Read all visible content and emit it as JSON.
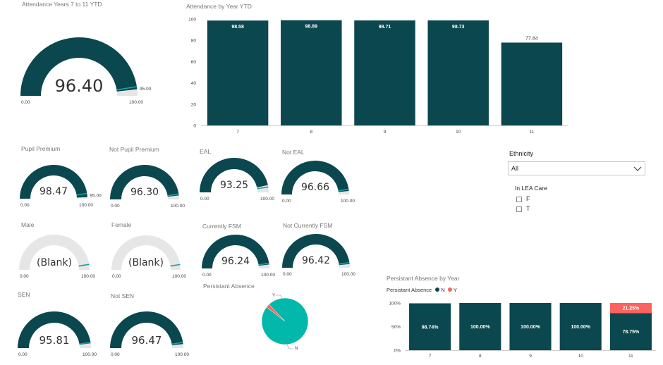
{
  "colors": {
    "primary": "#0b474f",
    "track": "#e6e6e6",
    "target": "#1aa3a3",
    "accent": "#fd625e",
    "pie_n": "#01b8aa"
  },
  "gauges": [
    {
      "title": "Attendance Years 7 to 11 YTD",
      "value": 96.4,
      "label": "96.40",
      "min_label": "0.00",
      "max_label": "100.00",
      "target_label": "95.00",
      "target": 95,
      "max": 100
    },
    {
      "title": "Pupil Premium",
      "value": 98.47,
      "label": "98.47",
      "min_label": "0.00",
      "max_label": "100.00",
      "target_label": "95.00",
      "target": 95,
      "max": 100
    },
    {
      "title": "Not Pupil Premium",
      "value": 96.3,
      "label": "96.30",
      "min_label": "0.00",
      "max_label": "100.00",
      "target_label": "",
      "target": 95,
      "max": 100
    },
    {
      "title": "EAL",
      "value": 93.25,
      "label": "93.25",
      "min_label": "0.00",
      "max_label": "100.00",
      "target_label": "",
      "target": 95,
      "max": 100
    },
    {
      "title": "Not EAL",
      "value": 96.66,
      "label": "96.66",
      "min_label": "0.00",
      "max_label": "100.00",
      "target_label": "",
      "target": 95,
      "max": 100
    },
    {
      "title": "Male",
      "value": null,
      "label": "(Blank)",
      "min_label": "0.00",
      "max_label": "100.00",
      "target_label": "",
      "target": 95,
      "max": 100
    },
    {
      "title": "Female",
      "value": null,
      "label": "(Blank)",
      "min_label": "0.00",
      "max_label": "100.00",
      "target_label": "",
      "target": 95,
      "max": 100
    },
    {
      "title": "Currently FSM",
      "value": 96.24,
      "label": "96.24",
      "min_label": "0.00",
      "max_label": "100.00",
      "target_label": "",
      "target": 95,
      "max": 100
    },
    {
      "title": "Not Currently FSM",
      "value": 96.42,
      "label": "96.42",
      "min_label": "0.00",
      "max_label": "100.00",
      "target_label": "",
      "target": 95,
      "max": 100
    },
    {
      "title": "SEN",
      "value": 95.81,
      "label": "95.81",
      "min_label": "0.00",
      "max_label": "100.00",
      "target_label": "",
      "target": 95,
      "max": 100
    },
    {
      "title": "Not SEN",
      "value": 96.47,
      "label": "96.47",
      "min_label": "0.00",
      "max_label": "100.00",
      "target_label": "",
      "target": 95,
      "max": 100
    }
  ],
  "chart_data": [
    {
      "type": "bar",
      "title": "Attendance by Year YTD",
      "categories": [
        "7",
        "8",
        "9",
        "10",
        "11"
      ],
      "values": [
        98.58,
        98.89,
        98.71,
        98.73,
        77.84
      ],
      "value_labels": [
        "98.58",
        "98.89",
        "98.71",
        "98.73",
        "77.84"
      ],
      "ylim": [
        0,
        100
      ],
      "yticks": [
        "0",
        "20",
        "40",
        "60",
        "80",
        "100"
      ],
      "grid": false
    },
    {
      "type": "pie",
      "title": "Persistant Absence",
      "slices": [
        {
          "name": "N",
          "value": 97.5
        },
        {
          "name": "Y",
          "value": 2.5
        }
      ]
    },
    {
      "type": "bar",
      "stacked": "100%",
      "title": "Persistant Absence by Year",
      "legend_title": "Persistant Absence",
      "legend_position": "top-left",
      "categories": [
        "7",
        "8",
        "9",
        "10",
        "11"
      ],
      "yticks": [
        "0%",
        "50%",
        "100%"
      ],
      "series": [
        {
          "name": "N",
          "values": [
            98.74,
            100.0,
            100.0,
            100.0,
            78.75
          ],
          "labels": [
            "98.74%",
            "100.00%",
            "100.00%",
            "100.00%",
            "78.75%"
          ]
        },
        {
          "name": "Y",
          "values": [
            1.26,
            0,
            0,
            0,
            21.25
          ],
          "labels": [
            "",
            "",
            "",
            "",
            "21.25%"
          ]
        }
      ]
    }
  ],
  "slicers": {
    "ethnicity": {
      "title": "Ethnicity",
      "selected": "All"
    },
    "lea_care": {
      "title": "In LEA Care",
      "options": [
        "F",
        "T"
      ]
    }
  }
}
